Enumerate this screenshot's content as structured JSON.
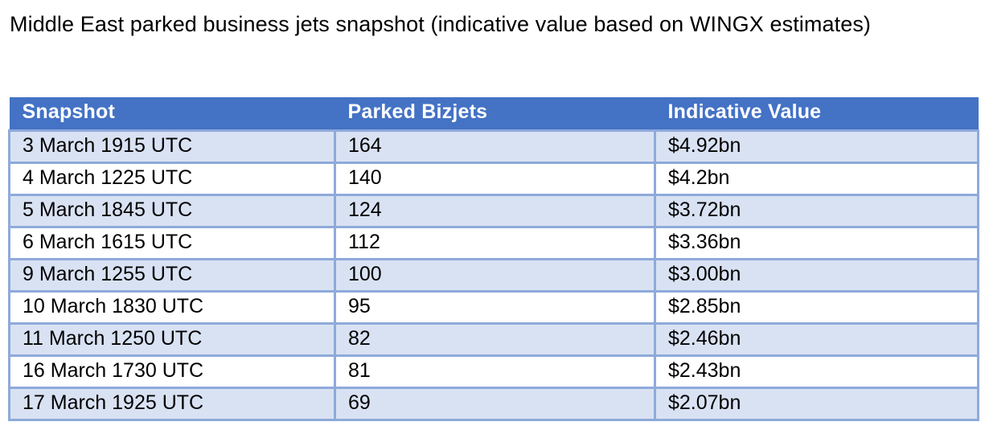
{
  "title": "Middle East parked business jets snapshot (indicative value based on WINGX estimates)",
  "table": {
    "columns": [
      "Snapshot",
      "Parked Bizjets",
      "Indicative Value"
    ],
    "rows": [
      [
        "3 March 1915 UTC",
        "164",
        "$4.92bn"
      ],
      [
        "4 March 1225 UTC",
        "140",
        "$4.2bn"
      ],
      [
        "5 March 1845 UTC",
        "124",
        "$3.72bn"
      ],
      [
        "6 March 1615 UTC",
        "112",
        "$3.36bn"
      ],
      [
        "9 March 1255 UTC",
        "100",
        "$3.00bn"
      ],
      [
        "10 March 1830 UTC",
        "95",
        "$2.85bn"
      ],
      [
        "11 March 1250 UTC",
        "82",
        "$2.46bn"
      ],
      [
        "16 March 1730 UTC",
        "81",
        "$2.43bn"
      ],
      [
        "17 March 1925 UTC",
        "69",
        "$2.07bn"
      ]
    ]
  },
  "colors": {
    "header_bg": "#4472C4",
    "header_text": "#FFFFFF",
    "band_bg": "#D9E2F3",
    "border": "#8EAADB",
    "text": "#000000",
    "page_bg": "#FFFFFF"
  }
}
